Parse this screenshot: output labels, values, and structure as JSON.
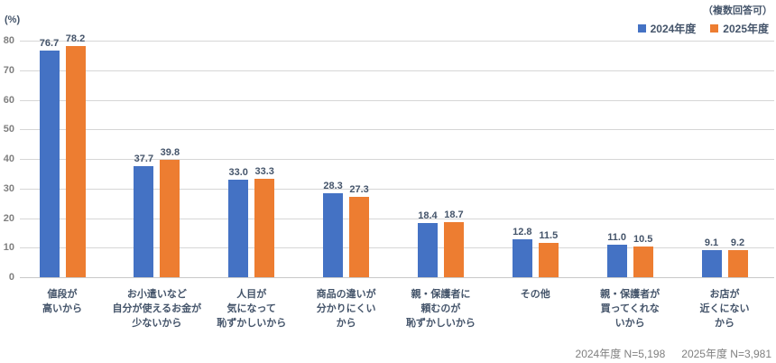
{
  "header": {
    "unit_label": "(%)",
    "multiple_answers_note": "（複数回答可）"
  },
  "legend": [
    {
      "label": "2024年度",
      "color": "#4472C4"
    },
    {
      "label": "2025年度",
      "color": "#ED7D31"
    }
  ],
  "footer": {
    "sample_size_2024": "2024年度 N=5,198",
    "sample_size_2025": "2025年度 N=3,981"
  },
  "colors": {
    "series_2024": "#4472C4",
    "series_2025": "#ED7D31",
    "label_text": "#44546A",
    "tick_text": "#7F7F7F",
    "gridline": "#D6D6D6",
    "footer_text": "#808080"
  },
  "chart_data": {
    "type": "bar",
    "title": "",
    "xlabel": "",
    "ylabel": "(%)",
    "ylim": [
      0,
      80
    ],
    "ytick_interval": 10,
    "grid": true,
    "legend_position": "top-right",
    "annotation": "（複数回答可）",
    "categories": [
      "値段が\n高いから",
      "お小遣いなど\n自分が使えるお金が\n少ないから",
      "人目が\n気になって\n恥ずかしいから",
      "商品の違いが\n分かりにくい\nから",
      "親・保護者に\n頼むのが\n恥ずかしいから",
      "その他",
      "親・保護者が\n買ってくれな\nいから",
      "お店が\n近くにない\nから"
    ],
    "series": [
      {
        "name": "2024年度",
        "color": "#4472C4",
        "values": [
          76.7,
          37.7,
          33.0,
          28.3,
          18.4,
          12.8,
          11.0,
          9.1
        ]
      },
      {
        "name": "2025年度",
        "color": "#ED7D31",
        "values": [
          78.2,
          39.8,
          33.3,
          27.3,
          18.7,
          11.5,
          10.5,
          9.2
        ]
      }
    ]
  }
}
